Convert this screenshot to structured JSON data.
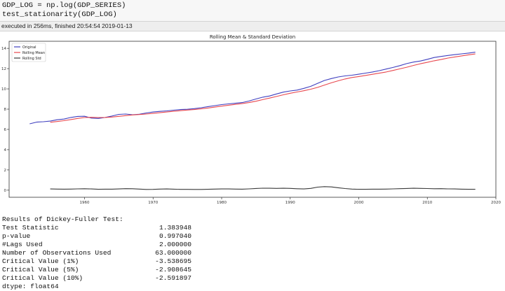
{
  "code_cell": {
    "lines": [
      "GDP_LOG = np.log(GDP_SERIES)",
      "test_stationarity(GDP_LOG)"
    ]
  },
  "execution": {
    "status": "executed in 256ms, finished 20:54:54 2019-01-13"
  },
  "chart_data": {
    "type": "line",
    "title": "Rolling Mean & Standard Deviation",
    "xlabel": "",
    "ylabel": "",
    "xlim": [
      1949,
      2020
    ],
    "ylim": [
      -0.7,
      14.7
    ],
    "x_ticks": [
      1960,
      1970,
      1980,
      1990,
      2000,
      2010,
      2020
    ],
    "y_ticks": [
      0,
      2,
      4,
      6,
      8,
      10,
      12,
      14
    ],
    "grid": false,
    "legend_position": "top-left",
    "series": [
      {
        "name": "Original",
        "color": "#3f3fbf",
        "x": [
          1952,
          1953,
          1954,
          1955,
          1956,
          1957,
          1958,
          1959,
          1960,
          1961,
          1962,
          1963,
          1964,
          1965,
          1966,
          1967,
          1968,
          1969,
          1970,
          1971,
          1972,
          1973,
          1974,
          1975,
          1976,
          1977,
          1978,
          1979,
          1980,
          1981,
          1982,
          1983,
          1984,
          1985,
          1986,
          1987,
          1988,
          1989,
          1990,
          1991,
          1992,
          1993,
          1994,
          1995,
          1996,
          1997,
          1998,
          1999,
          2000,
          2001,
          2002,
          2003,
          2004,
          2005,
          2006,
          2007,
          2008,
          2009,
          2010,
          2011,
          2012,
          2013,
          2014,
          2015,
          2016,
          2017
        ],
        "values": [
          6.55,
          6.72,
          6.76,
          6.82,
          6.95,
          7.02,
          7.18,
          7.28,
          7.3,
          7.12,
          7.08,
          7.18,
          7.32,
          7.48,
          7.52,
          7.45,
          7.5,
          7.62,
          7.72,
          7.78,
          7.83,
          7.9,
          7.96,
          7.99,
          8.05,
          8.14,
          8.25,
          8.35,
          8.45,
          8.52,
          8.58,
          8.65,
          8.8,
          9.0,
          9.18,
          9.3,
          9.5,
          9.68,
          9.8,
          9.88,
          10.05,
          10.25,
          10.55,
          10.83,
          11.02,
          11.18,
          11.28,
          11.35,
          11.45,
          11.56,
          11.67,
          11.8,
          11.96,
          12.12,
          12.3,
          12.5,
          12.65,
          12.75,
          12.92,
          13.1,
          13.2,
          13.3,
          13.38,
          13.46,
          13.53,
          13.62
        ]
      },
      {
        "name": "Rolling Mean",
        "color": "#e8474e",
        "x": [
          1955,
          1956,
          1957,
          1958,
          1959,
          1960,
          1961,
          1962,
          1963,
          1964,
          1965,
          1966,
          1967,
          1968,
          1969,
          1970,
          1971,
          1972,
          1973,
          1974,
          1975,
          1976,
          1977,
          1978,
          1979,
          1980,
          1981,
          1982,
          1983,
          1984,
          1985,
          1986,
          1987,
          1988,
          1989,
          1990,
          1991,
          1992,
          1993,
          1994,
          1995,
          1996,
          1997,
          1998,
          1999,
          2000,
          2001,
          2002,
          2003,
          2004,
          2005,
          2006,
          2007,
          2008,
          2009,
          2010,
          2011,
          2012,
          2013,
          2014,
          2015,
          2016,
          2017
        ],
        "values": [
          6.7,
          6.78,
          6.86,
          6.97,
          7.08,
          7.17,
          7.19,
          7.17,
          7.18,
          7.22,
          7.29,
          7.36,
          7.43,
          7.47,
          7.52,
          7.58,
          7.65,
          7.72,
          7.79,
          7.85,
          7.91,
          7.96,
          8.03,
          8.11,
          8.2,
          8.3,
          8.39,
          8.47,
          8.55,
          8.65,
          8.78,
          8.94,
          9.09,
          9.25,
          9.42,
          9.57,
          9.69,
          9.82,
          9.97,
          10.15,
          10.38,
          10.6,
          10.8,
          10.98,
          11.12,
          11.22,
          11.33,
          11.44,
          11.55,
          11.67,
          11.82,
          11.98,
          12.14,
          12.32,
          12.48,
          12.62,
          12.77,
          12.9,
          13.04,
          13.15,
          13.26,
          13.36,
          13.45
        ]
      },
      {
        "name": "Rolling Std",
        "color": "#3a3a3a",
        "x": [
          1955,
          1956,
          1957,
          1958,
          1959,
          1960,
          1961,
          1962,
          1963,
          1964,
          1965,
          1966,
          1967,
          1968,
          1969,
          1970,
          1971,
          1972,
          1973,
          1974,
          1975,
          1976,
          1977,
          1978,
          1979,
          1980,
          1981,
          1982,
          1983,
          1984,
          1985,
          1986,
          1987,
          1988,
          1989,
          1990,
          1991,
          1992,
          1993,
          1994,
          1995,
          1996,
          1997,
          1998,
          1999,
          2000,
          2001,
          2002,
          2003,
          2004,
          2005,
          2006,
          2007,
          2008,
          2009,
          2010,
          2011,
          2012,
          2013,
          2014,
          2015,
          2016,
          2017
        ],
        "values": [
          0.12,
          0.11,
          0.1,
          0.11,
          0.13,
          0.14,
          0.12,
          0.09,
          0.1,
          0.1,
          0.12,
          0.15,
          0.14,
          0.11,
          0.07,
          0.08,
          0.11,
          0.12,
          0.1,
          0.08,
          0.08,
          0.07,
          0.07,
          0.09,
          0.11,
          0.12,
          0.12,
          0.11,
          0.1,
          0.13,
          0.17,
          0.2,
          0.19,
          0.18,
          0.19,
          0.18,
          0.14,
          0.12,
          0.18,
          0.3,
          0.35,
          0.32,
          0.24,
          0.16,
          0.11,
          0.09,
          0.09,
          0.1,
          0.1,
          0.11,
          0.13,
          0.15,
          0.17,
          0.19,
          0.18,
          0.16,
          0.14,
          0.15,
          0.13,
          0.12,
          0.1,
          0.09,
          0.09
        ]
      }
    ]
  },
  "dickey_fuller": {
    "header": "Results of Dickey-Fuller Test:",
    "rows": [
      {
        "label": "Test Statistic",
        "value": "1.383948"
      },
      {
        "label": "p-value",
        "value": "0.997040"
      },
      {
        "label": "#Lags Used",
        "value": "2.000000"
      },
      {
        "label": "Number of Observations Used",
        "value": "63.000000"
      },
      {
        "label": "Critical Value (1%)",
        "value": "-3.538695"
      },
      {
        "label": "Critical Value (5%)",
        "value": "-2.908645"
      },
      {
        "label": "Critical Value (10%)",
        "value": "-2.591897"
      }
    ],
    "dtype": "dtype: float64"
  }
}
